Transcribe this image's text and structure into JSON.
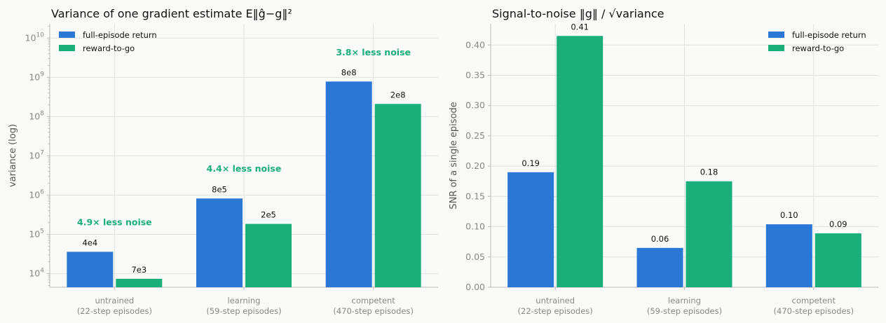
{
  "colors": {
    "full": "#2a77d6",
    "rtg": "#1aaf78",
    "grid": "#e2e2e2",
    "axis": "#bbbbbb",
    "annotation": "#1aaf78"
  },
  "chart_data": [
    {
      "type": "bar",
      "title": "Variance of one gradient estimate  E‖ĝ−g‖²",
      "ylabel": "variance (log)",
      "yscale": "log",
      "ylim": [
        4500,
        23000000000
      ],
      "yticks": [
        {
          "value": 10000,
          "base": "10",
          "exp": "4"
        },
        {
          "value": 100000,
          "base": "10",
          "exp": "5"
        },
        {
          "value": 1000000,
          "base": "10",
          "exp": "6"
        },
        {
          "value": 10000000,
          "base": "10",
          "exp": "7"
        },
        {
          "value": 100000000,
          "base": "10",
          "exp": "8"
        },
        {
          "value": 1000000000,
          "base": "10",
          "exp": "9"
        },
        {
          "value": 10000000000,
          "base": "10",
          "exp": "10"
        }
      ],
      "categories": [
        [
          "untrained",
          "(22-step episodes)"
        ],
        [
          "learning",
          "(59-step episodes)"
        ],
        [
          "competent",
          "(470-step episodes)"
        ]
      ],
      "series": [
        {
          "name": "full-episode return",
          "values": [
            36000,
            820000,
            780000000
          ],
          "labels": [
            "4e4",
            "8e5",
            "8e8"
          ]
        },
        {
          "name": "reward-to-go",
          "values": [
            7400,
            185000,
            210000000
          ],
          "labels": [
            "7e3",
            "2e5",
            "2e8"
          ]
        }
      ],
      "annotations": [
        {
          "text": "4.9× less noise",
          "value": 200000
        },
        {
          "text": "4.4× less noise",
          "value": 4700000
        },
        {
          "text": "3.8× less noise",
          "value": 4300000000
        }
      ],
      "legend": "top-left",
      "grid": true
    },
    {
      "type": "bar",
      "title": "Signal-to-noise  ‖g‖ / √variance",
      "ylabel": "SNR of a single episode",
      "ylim": [
        0,
        0.435
      ],
      "yticks": [
        {
          "value": 0.0,
          "label": "0.00"
        },
        {
          "value": 0.05,
          "label": "0.05"
        },
        {
          "value": 0.1,
          "label": "0.10"
        },
        {
          "value": 0.15,
          "label": "0.15"
        },
        {
          "value": 0.2,
          "label": "0.20"
        },
        {
          "value": 0.25,
          "label": "0.25"
        },
        {
          "value": 0.3,
          "label": "0.30"
        },
        {
          "value": 0.35,
          "label": "0.35"
        },
        {
          "value": 0.4,
          "label": "0.40"
        }
      ],
      "categories": [
        [
          "untrained",
          "(22-step episodes)"
        ],
        [
          "learning",
          "(59-step episodes)"
        ],
        [
          "competent",
          "(470-step episodes)"
        ]
      ],
      "series": [
        {
          "name": "full-episode return",
          "values": [
            0.19,
            0.065,
            0.104
          ],
          "labels": [
            "0.19",
            "0.06",
            "0.10"
          ]
        },
        {
          "name": "reward-to-go",
          "values": [
            0.415,
            0.175,
            0.089
          ],
          "labels": [
            "0.41",
            "0.18",
            "0.09"
          ]
        }
      ],
      "legend": "top-right",
      "grid": true
    }
  ]
}
